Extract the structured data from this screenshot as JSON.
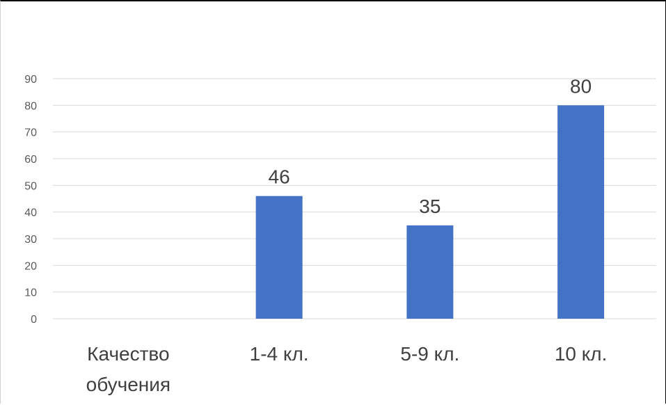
{
  "chart_data": {
    "type": "bar",
    "categories": [
      "Качество обучения",
      "1-4 кл.",
      "5-9 кл.",
      "10 кл."
    ],
    "category_lines": [
      [
        "Качество",
        "обучения"
      ],
      [
        "1-4 кл."
      ],
      [
        "5-9 кл."
      ],
      [
        "10 кл."
      ]
    ],
    "values": [
      null,
      46,
      35,
      80
    ],
    "data_labels": [
      "",
      "46",
      "35",
      "80"
    ],
    "yticks": [
      "0",
      "10",
      "20",
      "30",
      "40",
      "50",
      "60",
      "70",
      "80",
      "90"
    ],
    "ylim": [
      0,
      90
    ],
    "grid": true,
    "legend": "none",
    "bar_color": "#4472C4",
    "grid_color": "#d9d9d9"
  }
}
